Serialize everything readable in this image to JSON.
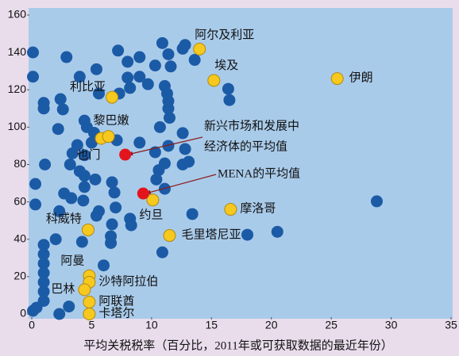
{
  "chart_data": {
    "type": "scatter",
    "x_label": "平均关税税率（百分比，2011年或可获取数据的最近年份）",
    "xlim": [
      0,
      35
    ],
    "xticks": [
      0,
      5,
      10,
      15,
      20,
      25,
      30,
      35
    ],
    "ylim": [
      0,
      160
    ],
    "yticks": [
      0,
      20,
      40,
      60,
      80,
      100,
      120,
      140,
      160
    ],
    "series": [
      {
        "color": "#1b5ba6",
        "x": [
          0.1,
          0.1,
          1,
          1,
          2.9,
          2.4,
          2.6,
          4,
          5.4,
          7.2,
          8,
          9,
          8,
          10.9,
          11.4,
          12.6,
          12.8,
          13.6,
          10.3,
          11.6,
          9.7,
          11.1,
          11.3,
          11.4,
          11.4,
          11.5,
          16.4,
          16.5,
          5.6,
          7.3,
          8.2,
          9,
          2.2,
          4.4,
          4.6,
          5.2,
          5,
          3.8,
          3.4,
          3.2,
          1.1,
          4.4,
          7.1,
          9,
          10.3,
          11.1,
          11.4,
          12.6,
          13.1,
          12.8,
          10.7,
          12.6,
          4,
          4.4,
          5.3,
          4.4,
          6.7,
          6.9,
          2.7,
          3.3,
          0.3,
          0.3,
          4.3,
          2.3,
          5.6,
          5.4,
          8.2,
          7,
          8.3,
          6.7,
          10.4,
          11.1,
          10.6,
          13.4,
          18,
          20.5,
          28.8,
          10.9,
          6.6,
          6.6,
          4.2,
          2,
          1,
          1,
          1,
          1,
          1,
          1,
          1,
          0.1,
          0.4,
          2.3,
          3.1,
          6
        ],
        "y": [
          140,
          127,
          113,
          110,
          137.5,
          115,
          109.5,
          127,
          131,
          141,
          135,
          137.5,
          126.5,
          145,
          139,
          142,
          144,
          136,
          133,
          132.5,
          123,
          122,
          118,
          114,
          110,
          105,
          120.5,
          114.5,
          118,
          118,
          121,
          127,
          99,
          103.5,
          100,
          97,
          91.7,
          90.4,
          86,
          80,
          80,
          85,
          93,
          91.7,
          86.6,
          80.6,
          90,
          80,
          81.5,
          88.3,
          100,
          96.8,
          76.4,
          74,
          72,
          68,
          70.5,
          65,
          64.5,
          62,
          69.6,
          58.6,
          60.7,
          55,
          55,
          52.6,
          51,
          57,
          47.5,
          48,
          72,
          67,
          77,
          53.5,
          42.4,
          44,
          60.3,
          33,
          41.6,
          38,
          38.6,
          40,
          37,
          32,
          27,
          22,
          17,
          12,
          7,
          1.7,
          3.4,
          0,
          4,
          26
        ]
      }
    ],
    "highlighted": {
      "color": "#f7c81e",
      "points": [
        {
          "label": "阿尔及利亚",
          "x": 14,
          "y": 141.8
        },
        {
          "label": "埃及",
          "x": 15.2,
          "y": 125
        },
        {
          "label": "伊朗",
          "x": 25.5,
          "y": 126
        },
        {
          "label": "利比亚",
          "x": 6.7,
          "y": 116
        },
        {
          "label": "也门",
          "x": 5.8,
          "y": 94
        },
        {
          "label": "黎巴嫩",
          "x": 6.4,
          "y": 95
        },
        {
          "label": "约旦",
          "x": 10.1,
          "y": 61
        },
        {
          "label": "摩洛哥",
          "x": 16.6,
          "y": 56
        },
        {
          "label": "毛里塔尼亚",
          "x": 11.5,
          "y": 42
        },
        {
          "label": "科威特",
          "x": 4.7,
          "y": 45
        },
        {
          "label": "阿曼",
          "x": 4.8,
          "y": 20.4
        },
        {
          "label": "沙特阿拉伯",
          "x": 4.8,
          "y": 17
        },
        {
          "label": "巴林",
          "x": 4.4,
          "y": 13
        },
        {
          "label": "阿联酋",
          "x": 4.8,
          "y": 6.4
        },
        {
          "label": "卡塔尔",
          "x": 4.8,
          "y": 0
        }
      ]
    },
    "averages": {
      "color": "#e3141b",
      "points": [
        {
          "label": [
            "新兴市场和发展中",
            "经济体的平均值"
          ],
          "x": 7.8,
          "y": 85.3
        },
        {
          "label": [
            "MENA的平均值"
          ],
          "x": 9.3,
          "y": 64.5
        }
      ]
    }
  }
}
